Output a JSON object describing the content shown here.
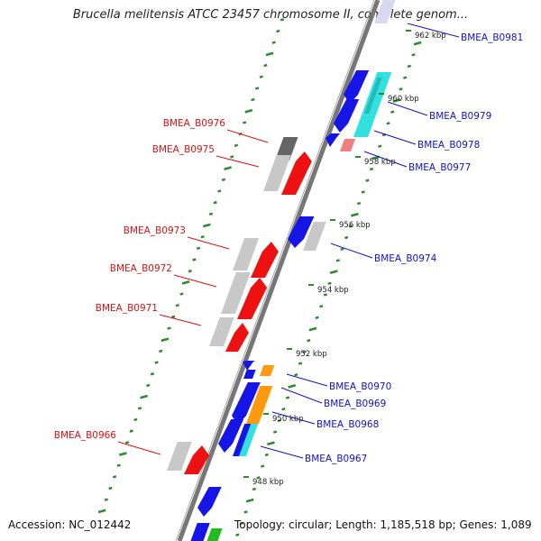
{
  "title": "Brucella melitensis ATCC 23457 chromosome II, complete genom...",
  "accession_label": "Accession: NC_012442",
  "topology_label": "Topology: circular; Length: 1,185,518 bp; Genes: 1,089",
  "colors": {
    "backbone": "#777777",
    "minor_tick": "#2e8b2e",
    "left_label": "#dd1111",
    "right_label": "#1111cc",
    "gene_red": "#ee1111",
    "gene_gray": "#c8c8c8",
    "gene_blue": "#1515e6",
    "gene_cyan": "#33e0e0",
    "gene_orange": "#ff9910",
    "gene_pink": "#f08080",
    "gene_darkgray": "#666666",
    "gene_green": "#22bb22"
  },
  "bp_ticks": [
    "962 kbp",
    "960 kbp",
    "958 kbp",
    "956 kbp",
    "954 kbp",
    "952 kbp",
    "950 kbp",
    "948 kbp"
  ],
  "left_labels": [
    "BMEA_B0976",
    "BMEA_B0975",
    "BMEA_B0973",
    "BMEA_B0972",
    "BMEA_B0971",
    "BMEA_B0966"
  ],
  "right_labels": [
    "BMEA_B0981",
    "BMEA_B0979",
    "BMEA_B0978",
    "BMEA_B0977",
    "BMEA_B0974",
    "BMEA_B0970",
    "BMEA_B0969",
    "BMEA_B0968",
    "BMEA_B0967"
  ]
}
